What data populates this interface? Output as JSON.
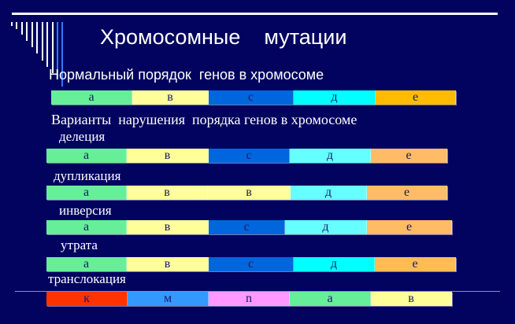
{
  "title": "Хромосомные    мутации",
  "subtitle": "Нормальный порядок  генов в хромосоме",
  "variants_heading": "Варианты  нарушения  порядка генов в хромосоме",
  "rows": [
    {
      "label": "",
      "genes": [
        {
          "name": "а",
          "color": "#66ee99"
        },
        {
          "name": "в",
          "color": "#ffff99"
        },
        {
          "name": "с",
          "color": "#0066dd"
        },
        {
          "name": "д",
          "color": "#00ffff"
        },
        {
          "name": "е",
          "color": "#ffbb00"
        }
      ]
    },
    {
      "label": "делеция",
      "genes": [
        {
          "name": "а",
          "color": "#66ee99"
        },
        {
          "name": "в",
          "color": "#ffff99"
        },
        {
          "name": "с",
          "color": "#0066dd"
        },
        {
          "name": "д",
          "color": "#66ffff"
        },
        {
          "name": "е",
          "color": "#ffbb66"
        }
      ]
    },
    {
      "label": "дупликация",
      "genes": [
        {
          "name": "а",
          "color": "#66ee99"
        },
        {
          "name": "в",
          "color": "#ffff99"
        },
        {
          "name": "в",
          "color": "#ffff99"
        },
        {
          "name": "д",
          "color": "#66ffff"
        },
        {
          "name": "е",
          "color": "#ffbb66"
        }
      ]
    },
    {
      "label": "инверсия",
      "genes": [
        {
          "name": "а",
          "color": "#66ee99"
        },
        {
          "name": "в",
          "color": "#ffff99"
        },
        {
          "name": "с",
          "color": "#0066dd"
        },
        {
          "name": "д",
          "color": "#66ffff"
        },
        {
          "name": "е",
          "color": "#ffbb66"
        }
      ]
    },
    {
      "label": "утрата",
      "genes": [
        {
          "name": "а",
          "color": "#66ee99"
        },
        {
          "name": "в",
          "color": "#ffff99"
        },
        {
          "name": "с",
          "color": "#0066dd"
        },
        {
          "name": "д",
          "color": "#00ffff"
        },
        {
          "name": "е",
          "color": "#ffbb55"
        }
      ]
    },
    {
      "label": "транслокация",
      "genes": [
        {
          "name": "к",
          "color": "#ff3300"
        },
        {
          "name": "м",
          "color": "#3399ff"
        },
        {
          "name": "n",
          "color": "#ff99ff"
        },
        {
          "name": "а",
          "color": "#66ee99"
        },
        {
          "name": "в",
          "color": "#ffff99"
        }
      ]
    }
  ]
}
